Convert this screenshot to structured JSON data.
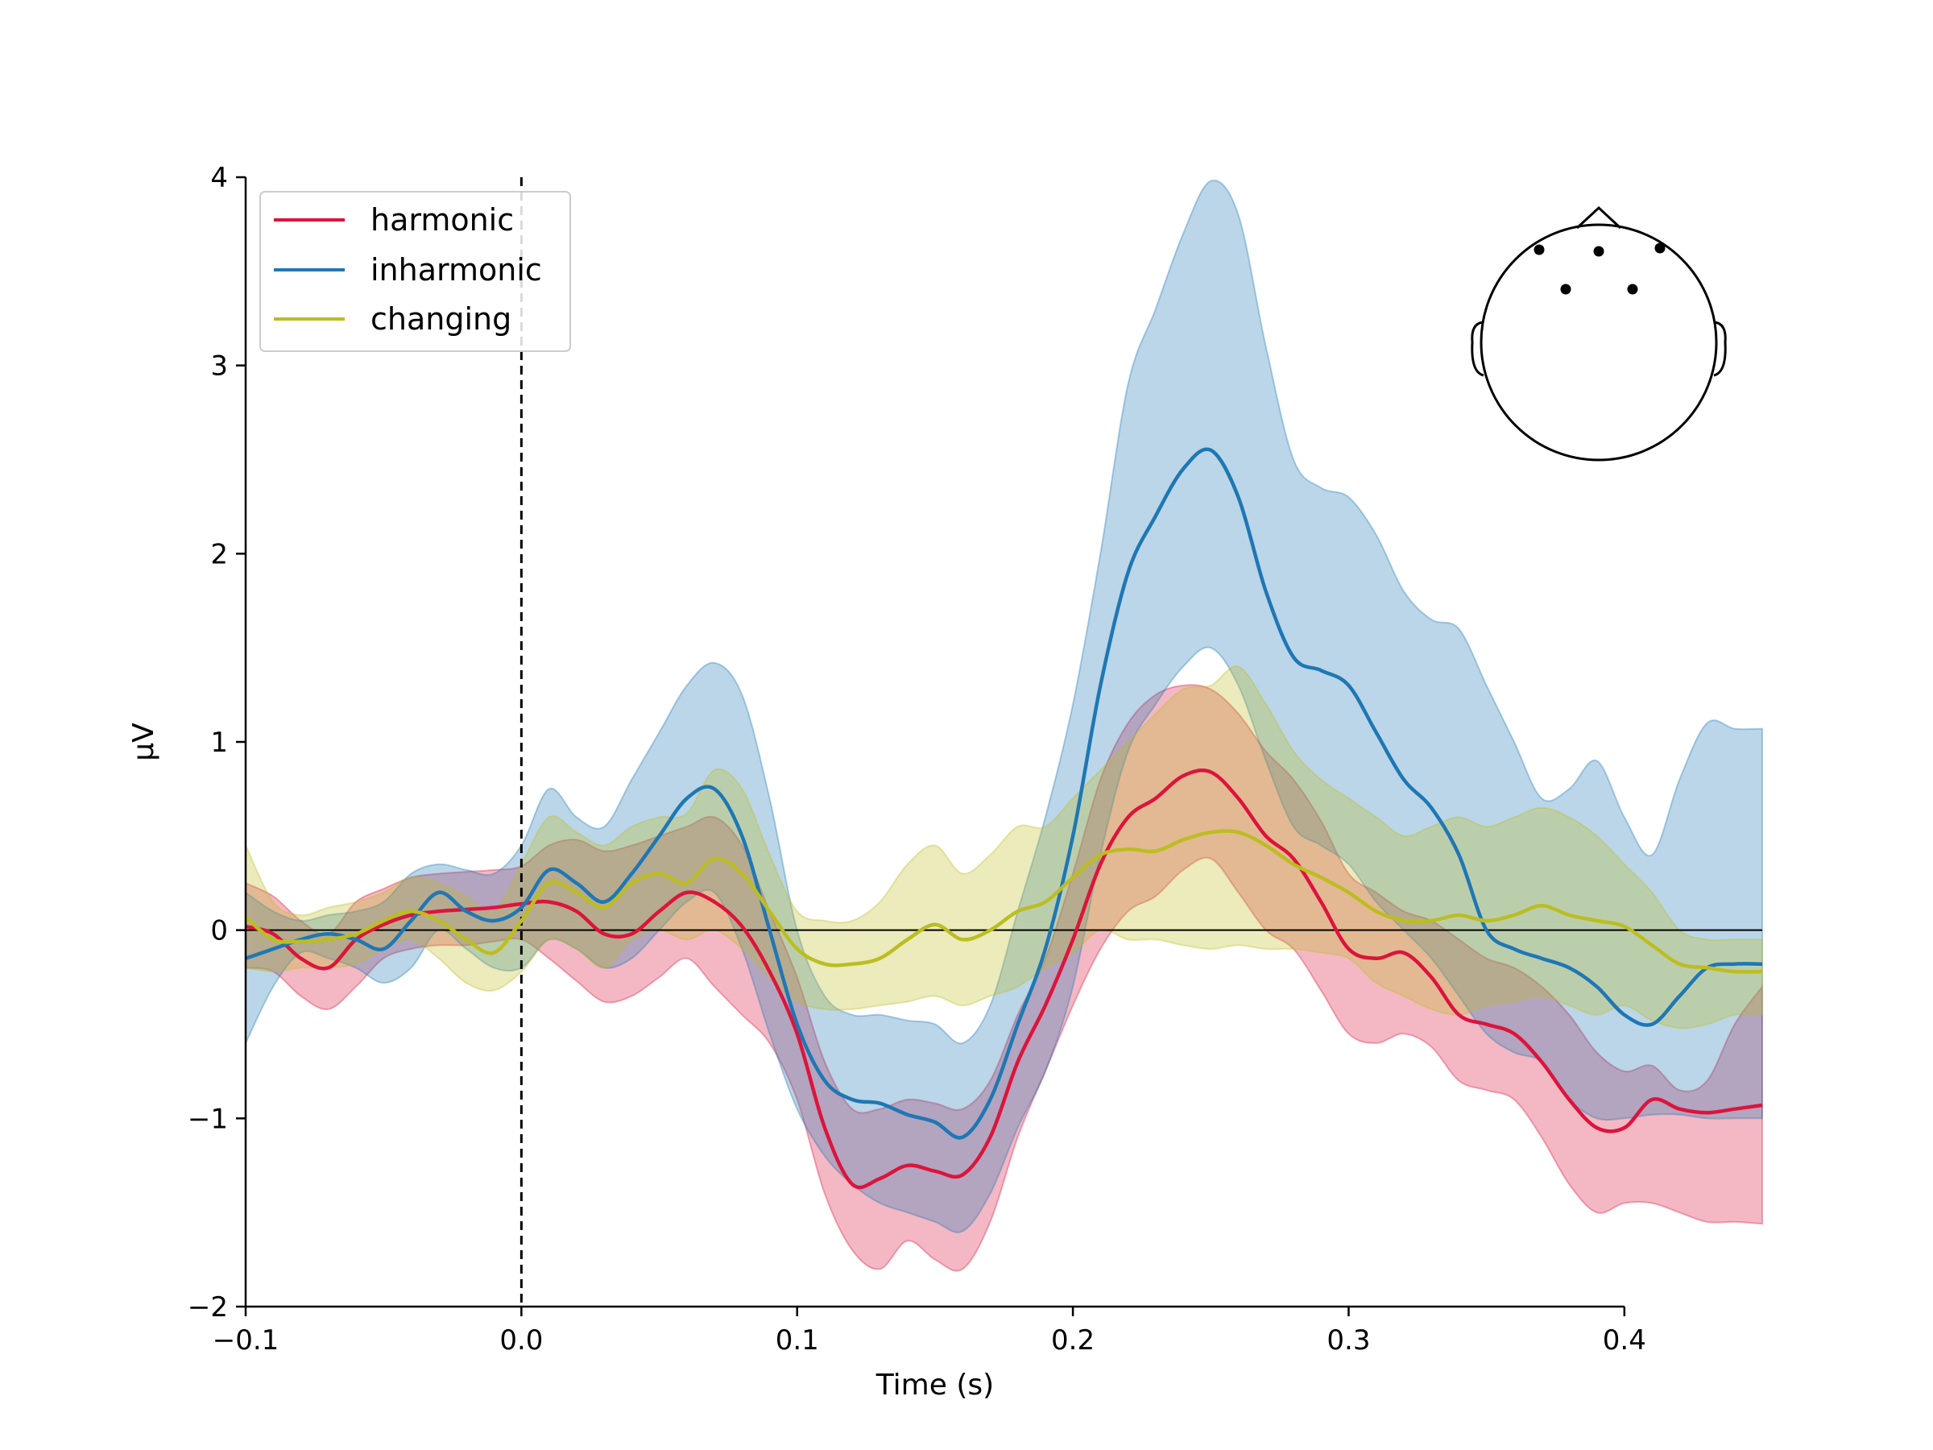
{
  "chart_data": {
    "type": "line",
    "xlabel": "Time (s)",
    "ylabel": "µV",
    "xlim": [
      -0.1,
      0.45
    ],
    "ylim": [
      -2,
      4
    ],
    "xticks": [
      -0.1,
      0.0,
      0.1,
      0.2,
      0.3,
      0.4
    ],
    "xtick_labels": [
      "−0.1",
      "0.0",
      "0.1",
      "0.2",
      "0.3",
      "0.4"
    ],
    "yticks": [
      -2,
      -1,
      0,
      1,
      2,
      3,
      4
    ],
    "ytick_labels": [
      "−2",
      "−1",
      "0",
      "1",
      "2",
      "3",
      "4"
    ],
    "stimulus_onset": 0.0,
    "zero_line": true,
    "legend_position": "top-left",
    "sensor_inset": "top-right",
    "x": [
      -0.1,
      -0.09,
      -0.08,
      -0.07,
      -0.06,
      -0.05,
      -0.04,
      -0.03,
      -0.02,
      -0.01,
      0.0,
      0.01,
      0.02,
      0.03,
      0.04,
      0.05,
      0.06,
      0.07,
      0.08,
      0.09,
      0.1,
      0.11,
      0.12,
      0.13,
      0.14,
      0.15,
      0.16,
      0.17,
      0.18,
      0.19,
      0.2,
      0.21,
      0.22,
      0.23,
      0.24,
      0.25,
      0.26,
      0.27,
      0.28,
      0.29,
      0.3,
      0.31,
      0.32,
      0.33,
      0.34,
      0.35,
      0.36,
      0.37,
      0.38,
      0.39,
      0.4,
      0.41,
      0.42,
      0.43,
      0.44,
      0.45
    ],
    "series": [
      {
        "name": "harmonic",
        "color": "#dc143c",
        "values": [
          0.02,
          -0.02,
          -0.15,
          -0.2,
          -0.05,
          0.03,
          0.08,
          0.1,
          0.11,
          0.12,
          0.14,
          0.15,
          0.1,
          -0.02,
          -0.02,
          0.1,
          0.2,
          0.15,
          0.02,
          -0.22,
          -0.55,
          -1.05,
          -1.35,
          -1.32,
          -1.25,
          -1.28,
          -1.3,
          -1.1,
          -0.7,
          -0.4,
          -0.05,
          0.35,
          0.6,
          0.7,
          0.82,
          0.84,
          0.7,
          0.5,
          0.38,
          0.15,
          -0.1,
          -0.15,
          -0.12,
          -0.25,
          -0.45,
          -0.5,
          -0.55,
          -0.7,
          -0.9,
          -1.05,
          -1.05,
          -0.9,
          -0.95,
          -0.97,
          -0.95,
          -0.93
        ],
        "upper": [
          0.25,
          0.18,
          0.05,
          -0.02,
          0.15,
          0.22,
          0.28,
          0.3,
          0.31,
          0.32,
          0.34,
          0.45,
          0.48,
          0.42,
          0.45,
          0.5,
          0.55,
          0.6,
          0.45,
          0.1,
          -0.25,
          -0.7,
          -0.95,
          -0.95,
          -0.9,
          -0.92,
          -0.95,
          -0.8,
          -0.45,
          -0.15,
          0.3,
          0.8,
          1.1,
          1.25,
          1.3,
          1.28,
          1.15,
          0.95,
          0.8,
          0.58,
          0.3,
          0.2,
          0.1,
          0.05,
          -0.05,
          -0.15,
          -0.2,
          -0.3,
          -0.45,
          -0.65,
          -0.75,
          -0.72,
          -0.85,
          -0.8,
          -0.5,
          -0.3
        ],
        "lower": [
          -0.2,
          -0.22,
          -0.35,
          -0.42,
          -0.3,
          -0.15,
          -0.1,
          -0.08,
          -0.08,
          -0.06,
          -0.05,
          -0.15,
          -0.27,
          -0.38,
          -0.35,
          -0.25,
          -0.15,
          -0.3,
          -0.45,
          -0.6,
          -0.9,
          -1.4,
          -1.7,
          -1.8,
          -1.65,
          -1.75,
          -1.8,
          -1.55,
          -1.1,
          -0.75,
          -0.4,
          -0.1,
          0.1,
          0.18,
          0.32,
          0.38,
          0.2,
          0.0,
          -0.1,
          -0.32,
          -0.55,
          -0.6,
          -0.55,
          -0.62,
          -0.8,
          -0.85,
          -0.9,
          -1.1,
          -1.35,
          -1.5,
          -1.45,
          -1.45,
          -1.5,
          -1.55,
          -1.55,
          -1.56
        ]
      },
      {
        "name": "inharmonic",
        "color": "#1f77b4",
        "values": [
          -0.15,
          -0.1,
          -0.05,
          -0.02,
          -0.05,
          -0.1,
          0.05,
          0.2,
          0.1,
          0.05,
          0.12,
          0.32,
          0.25,
          0.15,
          0.3,
          0.5,
          0.7,
          0.75,
          0.5,
          0.0,
          -0.5,
          -0.8,
          -0.9,
          -0.92,
          -0.98,
          -1.02,
          -1.1,
          -0.9,
          -0.5,
          -0.1,
          0.5,
          1.3,
          1.9,
          2.2,
          2.45,
          2.55,
          2.3,
          1.8,
          1.45,
          1.38,
          1.3,
          1.05,
          0.8,
          0.65,
          0.4,
          0.0,
          -0.1,
          -0.15,
          -0.2,
          -0.3,
          -0.45,
          -0.5,
          -0.35,
          -0.2,
          -0.18,
          -0.18
        ],
        "upper": [
          0.2,
          0.1,
          0.05,
          0.08,
          0.1,
          0.15,
          0.3,
          0.35,
          0.32,
          0.3,
          0.45,
          0.75,
          0.6,
          0.55,
          0.8,
          1.05,
          1.3,
          1.42,
          1.25,
          0.7,
          0.0,
          -0.35,
          -0.45,
          -0.45,
          -0.48,
          -0.5,
          -0.6,
          -0.4,
          0.1,
          0.6,
          1.2,
          2.0,
          2.9,
          3.3,
          3.7,
          3.98,
          3.8,
          3.1,
          2.5,
          2.35,
          2.3,
          2.1,
          1.8,
          1.65,
          1.6,
          1.3,
          1.0,
          0.7,
          0.75,
          0.9,
          0.6,
          0.4,
          0.8,
          1.1,
          1.07,
          1.07
        ],
        "lower": [
          -0.6,
          -0.3,
          -0.12,
          -0.15,
          -0.2,
          -0.28,
          -0.2,
          0.0,
          -0.1,
          -0.2,
          -0.2,
          -0.05,
          -0.1,
          -0.2,
          -0.15,
          0.0,
          0.15,
          0.2,
          -0.1,
          -0.55,
          -0.95,
          -1.2,
          -1.35,
          -1.45,
          -1.5,
          -1.55,
          -1.6,
          -1.4,
          -1.05,
          -0.75,
          -0.3,
          0.4,
          0.95,
          1.2,
          1.4,
          1.5,
          1.3,
          0.9,
          0.55,
          0.45,
          0.35,
          0.15,
          0.0,
          -0.15,
          -0.35,
          -0.55,
          -0.65,
          -0.7,
          -0.9,
          -1.0,
          -1.0,
          -0.98,
          -0.98,
          -1.0,
          -1.0,
          -1.0
        ]
      },
      {
        "name": "changing",
        "color": "#bcbd22",
        "values": [
          0.07,
          -0.05,
          -0.06,
          -0.05,
          -0.02,
          0.05,
          0.1,
          0.05,
          -0.05,
          -0.12,
          0.05,
          0.25,
          0.2,
          0.12,
          0.25,
          0.3,
          0.25,
          0.38,
          0.3,
          0.1,
          -0.1,
          -0.18,
          -0.18,
          -0.15,
          -0.05,
          0.03,
          -0.05,
          0.0,
          0.1,
          0.15,
          0.28,
          0.4,
          0.43,
          0.42,
          0.48,
          0.52,
          0.52,
          0.45,
          0.35,
          0.28,
          0.2,
          0.1,
          0.05,
          0.05,
          0.08,
          0.05,
          0.08,
          0.13,
          0.08,
          0.05,
          0.02,
          -0.08,
          -0.18,
          -0.2,
          -0.22,
          -0.22
        ],
        "upper": [
          0.45,
          0.15,
          0.08,
          0.12,
          0.15,
          0.2,
          0.28,
          0.25,
          0.18,
          0.1,
          0.35,
          0.6,
          0.52,
          0.45,
          0.55,
          0.6,
          0.62,
          0.85,
          0.75,
          0.4,
          0.1,
          0.05,
          0.05,
          0.15,
          0.35,
          0.45,
          0.3,
          0.4,
          0.55,
          0.55,
          0.7,
          0.85,
          1.0,
          1.15,
          1.28,
          1.3,
          1.4,
          1.2,
          0.95,
          0.8,
          0.7,
          0.6,
          0.5,
          0.55,
          0.6,
          0.55,
          0.6,
          0.65,
          0.6,
          0.5,
          0.35,
          0.2,
          0.0,
          -0.05,
          -0.05,
          -0.05
        ],
        "lower": [
          -0.2,
          -0.22,
          -0.2,
          -0.2,
          -0.18,
          -0.1,
          -0.05,
          -0.15,
          -0.28,
          -0.32,
          -0.22,
          -0.05,
          -0.1,
          -0.2,
          -0.05,
          0.0,
          -0.05,
          0.0,
          -0.1,
          -0.25,
          -0.38,
          -0.42,
          -0.42,
          -0.4,
          -0.38,
          -0.35,
          -0.4,
          -0.35,
          -0.3,
          -0.2,
          -0.12,
          0.0,
          -0.05,
          -0.05,
          -0.08,
          -0.1,
          -0.08,
          -0.1,
          -0.1,
          -0.12,
          -0.15,
          -0.28,
          -0.35,
          -0.42,
          -0.45,
          -0.4,
          -0.38,
          -0.35,
          -0.4,
          -0.45,
          -0.4,
          -0.48,
          -0.52,
          -0.5,
          -0.45,
          -0.45
        ]
      }
    ]
  }
}
